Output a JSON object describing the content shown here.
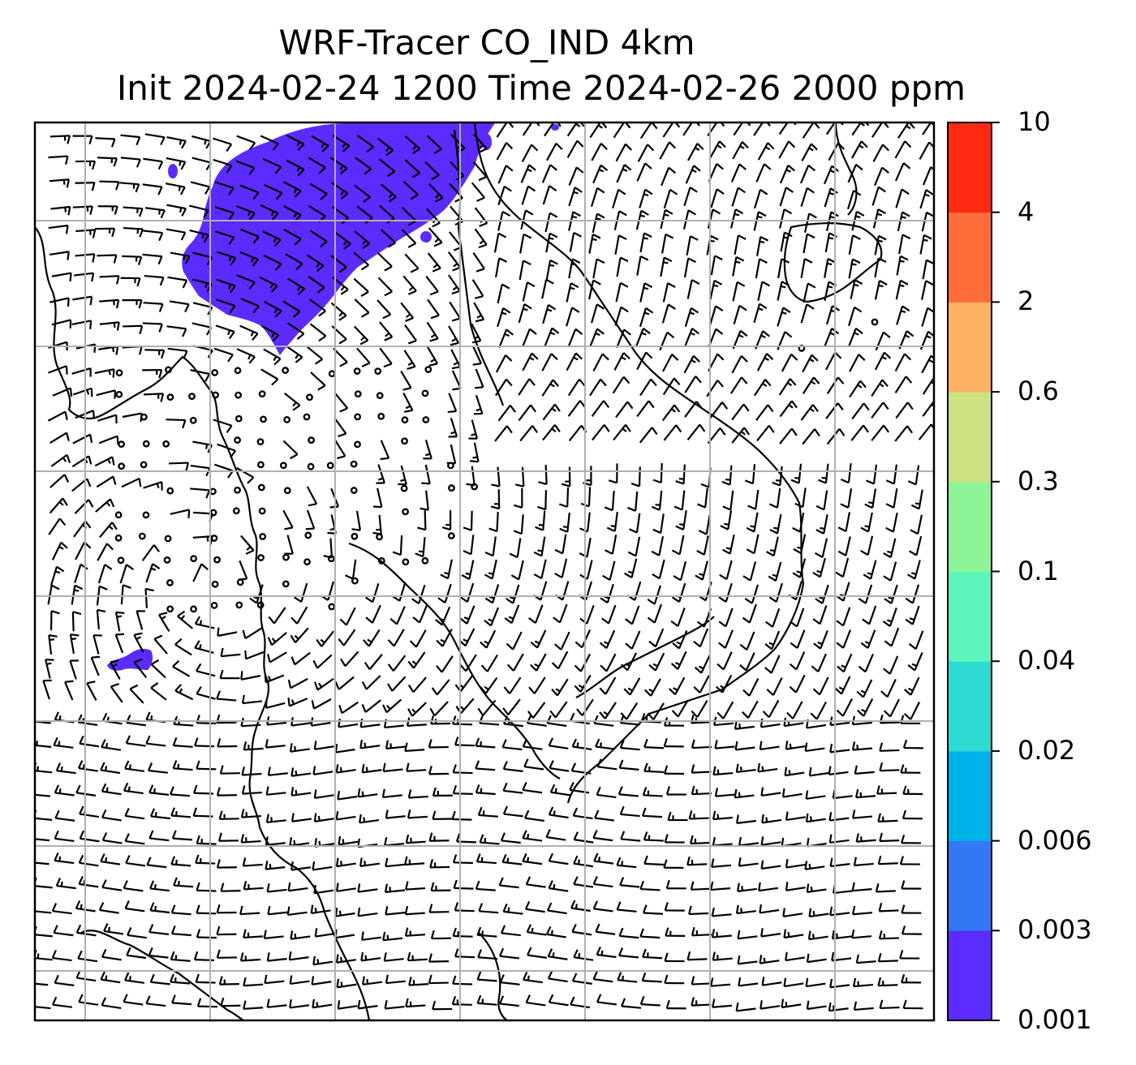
{
  "title": {
    "line1": "WRF-Tracer CO_IND 4km",
    "line2": "Init 2024-02-24 1200 Time 2024-02-26 2000 ppm"
  },
  "colorbar": {
    "levels": [
      "0.001",
      "0.003",
      "0.006",
      "0.02",
      "0.04",
      "0.1",
      "0.3",
      "0.6",
      "2",
      "4",
      "10"
    ],
    "colors": [
      "#5b2bff",
      "#3377f2",
      "#00b2ea",
      "#2ddbd2",
      "#5cf5bb",
      "#8df597",
      "#cde282",
      "#fcb161",
      "#ff6e3a",
      "#ff2a14"
    ]
  },
  "colors": {
    "plume": "#5b2bff",
    "gridline": "#b0b0b0",
    "barb": "#000000",
    "coast": "#000000"
  }
}
